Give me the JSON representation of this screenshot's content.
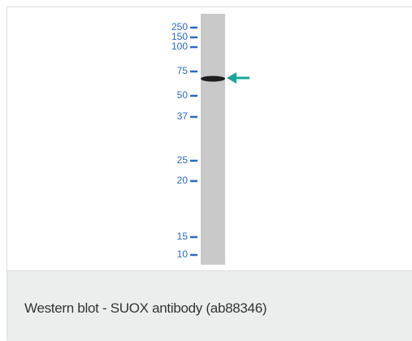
{
  "blot": {
    "markers": [
      "250",
      "150",
      "100",
      "75",
      "50",
      "37",
      "25",
      "20",
      "15",
      "10"
    ]
  },
  "caption": "Western blot - SUOX antibody (ab88346)"
}
